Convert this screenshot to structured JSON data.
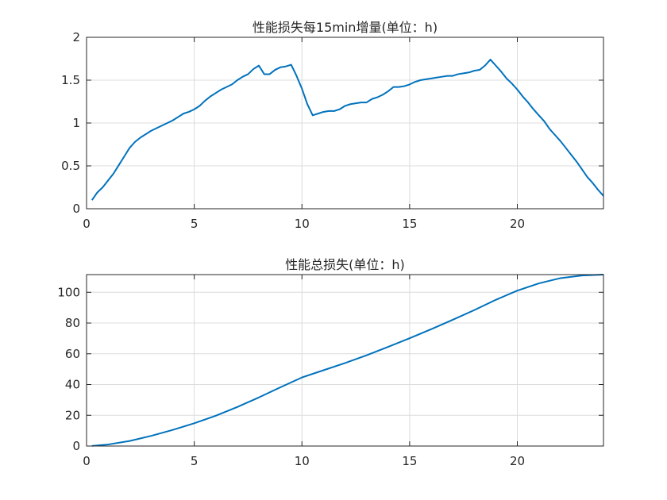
{
  "chart_data": [
    {
      "type": "line",
      "title": "性能损失每15min增量(单位：h)",
      "xlabel": "",
      "ylabel": "",
      "xlim": [
        0,
        24
      ],
      "ylim": [
        0,
        2
      ],
      "xticks": [
        0,
        5,
        10,
        15,
        20
      ],
      "yticks": [
        0,
        0.5,
        1,
        1.5,
        2
      ],
      "ytick_labels": [
        "0",
        "0.5",
        "1",
        "1.5",
        "2"
      ],
      "grid": true,
      "series": [
        {
          "color": "#0072bd",
          "x": [
            0.25,
            0.5,
            0.75,
            1.0,
            1.25,
            1.5,
            1.75,
            2.0,
            2.25,
            2.5,
            2.75,
            3.0,
            3.25,
            3.5,
            3.75,
            4.0,
            4.25,
            4.5,
            4.75,
            5.0,
            5.25,
            5.5,
            5.75,
            6.0,
            6.25,
            6.5,
            6.75,
            7.0,
            7.25,
            7.5,
            7.75,
            8.0,
            8.25,
            8.5,
            8.75,
            9.0,
            9.25,
            9.5,
            9.75,
            10.0,
            10.25,
            10.5,
            10.75,
            11.0,
            11.25,
            11.5,
            11.75,
            12.0,
            12.25,
            12.5,
            12.75,
            13.0,
            13.25,
            13.5,
            13.75,
            14.0,
            14.25,
            14.5,
            14.75,
            15.0,
            15.25,
            15.5,
            15.75,
            16.0,
            16.25,
            16.5,
            16.75,
            17.0,
            17.25,
            17.5,
            17.75,
            18.0,
            18.25,
            18.5,
            18.75,
            19.0,
            19.25,
            19.5,
            19.75,
            20.0,
            20.25,
            20.5,
            20.75,
            21.0,
            21.25,
            21.5,
            21.75,
            22.0,
            22.25,
            22.5,
            22.75,
            23.0,
            23.25,
            23.5,
            23.75,
            24.0
          ],
          "values": [
            0.1,
            0.19,
            0.25,
            0.33,
            0.41,
            0.51,
            0.61,
            0.71,
            0.78,
            0.83,
            0.87,
            0.91,
            0.94,
            0.97,
            1.0,
            1.03,
            1.07,
            1.11,
            1.13,
            1.16,
            1.2,
            1.26,
            1.31,
            1.35,
            1.39,
            1.42,
            1.45,
            1.5,
            1.54,
            1.57,
            1.63,
            1.67,
            1.57,
            1.57,
            1.62,
            1.65,
            1.66,
            1.68,
            1.55,
            1.4,
            1.22,
            1.09,
            1.11,
            1.13,
            1.14,
            1.14,
            1.16,
            1.2,
            1.22,
            1.23,
            1.24,
            1.24,
            1.28,
            1.3,
            1.33,
            1.37,
            1.42,
            1.42,
            1.43,
            1.45,
            1.48,
            1.5,
            1.51,
            1.52,
            1.53,
            1.54,
            1.55,
            1.55,
            1.57,
            1.58,
            1.59,
            1.61,
            1.62,
            1.67,
            1.74,
            1.67,
            1.6,
            1.52,
            1.46,
            1.39,
            1.31,
            1.24,
            1.16,
            1.09,
            1.02,
            0.93,
            0.86,
            0.79,
            0.71,
            0.63,
            0.55,
            0.46,
            0.37,
            0.3,
            0.22,
            0.15
          ]
        }
      ]
    },
    {
      "type": "line",
      "title": "性能总损失(单位：h)",
      "xlabel": "",
      "ylabel": "",
      "xlim": [
        0,
        24
      ],
      "ylim": [
        0,
        111.5
      ],
      "xticks": [
        0,
        5,
        10,
        15,
        20
      ],
      "yticks": [
        0,
        20,
        40,
        60,
        80,
        100
      ],
      "ytick_labels": [
        "0",
        "20",
        "40",
        "60",
        "80",
        "100"
      ],
      "grid": true,
      "series": [
        {
          "color": "#0072bd",
          "x": [
            0.25,
            1,
            2,
            3,
            4,
            5,
            6,
            7,
            8,
            9,
            10,
            11,
            12,
            13,
            14,
            15,
            16,
            17,
            18,
            19,
            20,
            21,
            22,
            23,
            24
          ],
          "values": [
            0.1,
            1.0,
            3.3,
            6.6,
            10.5,
            14.8,
            19.7,
            25.4,
            31.6,
            38.2,
            44.6,
            49.3,
            54.0,
            59.0,
            64.5,
            70.1,
            76.0,
            82.1,
            88.4,
            95.1,
            101.1,
            105.8,
            109.2,
            110.9,
            111.5
          ]
        }
      ]
    }
  ]
}
